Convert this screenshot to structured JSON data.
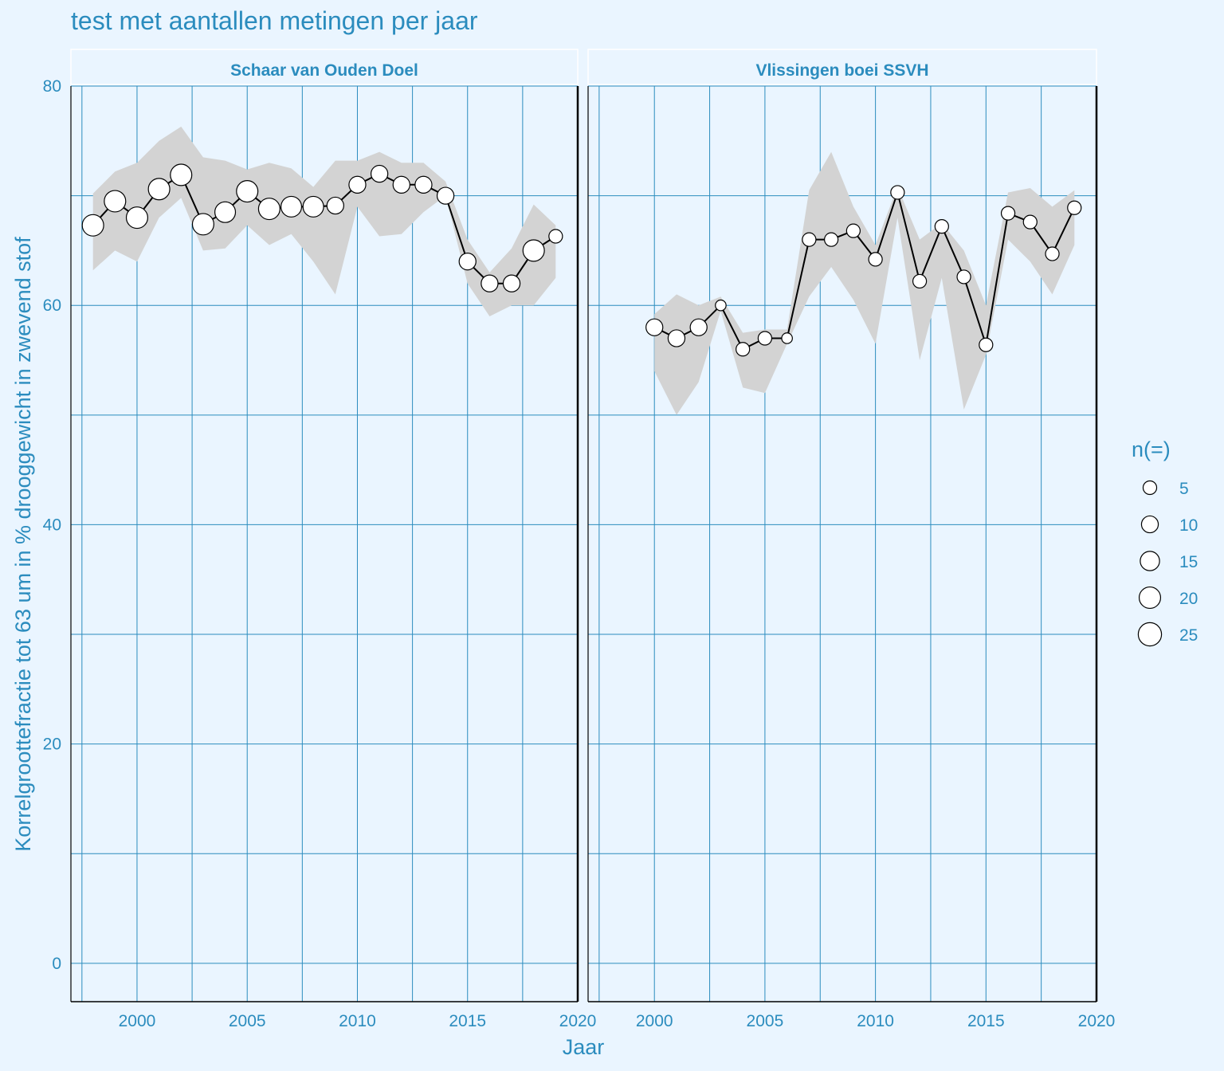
{
  "title": "test met aantallen metingen per jaar",
  "chart_data": {
    "type": "scatter",
    "title": "test met aantallen metingen per jaar",
    "xlabel": "Jaar",
    "ylabel": "Korrelgrootte​fractie tot 63 um in % drooggewicht in zwevend stof",
    "xlim": [
      1997,
      2020
    ],
    "ylim": [
      -3.5,
      80
    ],
    "x_ticks": [
      2000,
      2005,
      2010,
      2015,
      2020
    ],
    "y_ticks": [
      0,
      20,
      40,
      60,
      80
    ],
    "grid": true,
    "legend": {
      "title": "n(=)",
      "position": "right",
      "entries": [
        {
          "label": "5",
          "n": 5
        },
        {
          "label": "10",
          "n": 10
        },
        {
          "label": "15",
          "n": 15
        },
        {
          "label": "20",
          "n": 20
        },
        {
          "label": "25",
          "n": 25
        }
      ]
    },
    "colors": {
      "background": "#EAF5FF",
      "accent": "#2B8CBE",
      "ribbon": "#D3D3D3",
      "line": "#000000",
      "point_fill": "#FFFFFF"
    },
    "panels": [
      {
        "name": "Schaar van Ouden Doel",
        "x": [
          1998,
          1999,
          2000,
          2001,
          2002,
          2003,
          2004,
          2005,
          2006,
          2007,
          2008,
          2009,
          2010,
          2011,
          2012,
          2013,
          2014,
          2015,
          2016,
          2017,
          2018,
          2019
        ],
        "y": [
          67.3,
          69.5,
          68.0,
          70.6,
          71.9,
          67.4,
          68.5,
          70.4,
          68.8,
          69.0,
          69.0,
          69.1,
          71.0,
          72.0,
          71.0,
          71.0,
          70.0,
          64.0,
          62.0,
          62.0,
          65.0,
          66.3
        ],
        "lower": [
          63.2,
          65.0,
          64.0,
          68.0,
          69.8,
          65.0,
          65.2,
          67.3,
          65.5,
          66.5,
          64.0,
          61.0,
          69.0,
          66.3,
          66.5,
          68.5,
          70.0,
          62.0,
          59.0,
          60.0,
          60.0,
          62.5
        ],
        "upper": [
          70.2,
          72.2,
          73.0,
          75.0,
          76.3,
          73.5,
          73.2,
          72.4,
          73.0,
          72.5,
          70.8,
          73.2,
          73.2,
          74.0,
          73.0,
          73.0,
          71.3,
          66.0,
          63.0,
          65.2,
          69.2,
          67.3
        ],
        "n": [
          20,
          20,
          20,
          20,
          20,
          20,
          18,
          20,
          20,
          18,
          18,
          10,
          10,
          10,
          10,
          10,
          10,
          10,
          10,
          10,
          20,
          5
        ]
      },
      {
        "name": "Vlissingen boei SSVH",
        "x": [
          2000,
          2001,
          2002,
          2003,
          2004,
          2005,
          2006,
          2007,
          2008,
          2009,
          2010,
          2011,
          2012,
          2013,
          2014,
          2015,
          2016,
          2017,
          2018,
          2019
        ],
        "y": [
          58.0,
          57.0,
          58.0,
          60.0,
          56.0,
          57.0,
          57.0,
          66.0,
          66.0,
          66.8,
          64.2,
          70.3,
          62.2,
          67.2,
          62.6,
          56.4,
          68.4,
          67.6,
          64.7,
          68.9
        ],
        "lower": [
          54.0,
          50.0,
          53.0,
          59.5,
          52.5,
          52.0,
          56.5,
          60.8,
          63.5,
          60.5,
          56.5,
          68.0,
          55.0,
          62.5,
          50.5,
          55.5,
          66.0,
          64.0,
          61.0,
          65.5
        ],
        "upper": [
          59.2,
          61.0,
          60.0,
          60.8,
          57.5,
          57.8,
          57.8,
          70.5,
          74.0,
          69.0,
          65.5,
          70.8,
          66.0,
          67.5,
          65.0,
          60.0,
          70.3,
          70.7,
          69.0,
          70.5
        ],
        "n": [
          10,
          10,
          10,
          2,
          5,
          5,
          2,
          5,
          5,
          5,
          5,
          5,
          5,
          5,
          5,
          5,
          5,
          5,
          5,
          5
        ]
      }
    ]
  }
}
